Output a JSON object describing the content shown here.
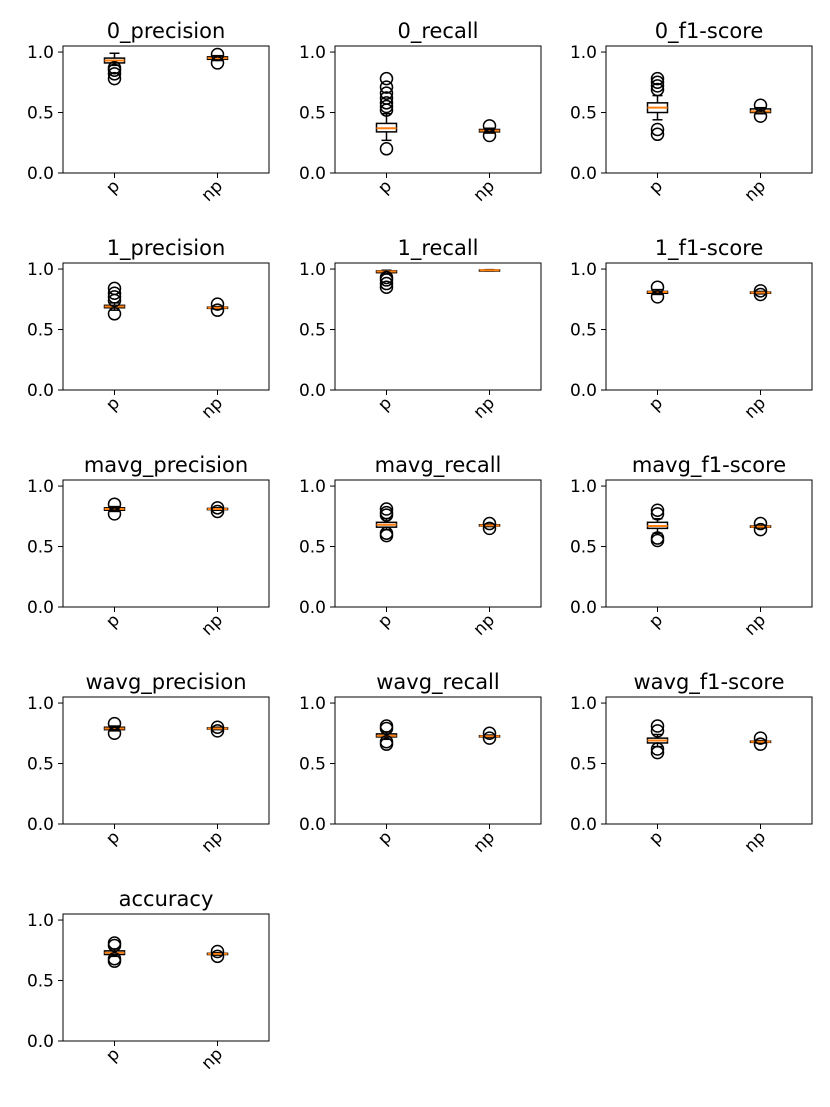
{
  "colors": {
    "median": "#ff7f0e",
    "box": "#000000",
    "flier": "#000000",
    "background": "#ffffff"
  },
  "chart_data": [
    {
      "type": "box",
      "title": "0_precision",
      "categories": [
        "p",
        "np"
      ],
      "yticks": [
        "0.0",
        "0.5",
        "1.0"
      ],
      "ylim": [
        0,
        1.05
      ],
      "boxes": [
        {
          "whislo": 0.89,
          "q1": 0.91,
          "med": 0.93,
          "q3": 0.95,
          "whishi": 0.99,
          "fliers": [
            0.78,
            0.82,
            0.85,
            0.87
          ]
        },
        {
          "whislo": 0.93,
          "q1": 0.94,
          "med": 0.95,
          "q3": 0.96,
          "whishi": 0.97,
          "fliers": [
            0.91,
            0.98
          ]
        }
      ]
    },
    {
      "type": "box",
      "title": "0_recall",
      "categories": [
        "p",
        "np"
      ],
      "yticks": [
        "0.0",
        "0.5",
        "1.0"
      ],
      "ylim": [
        0,
        1.05
      ],
      "boxes": [
        {
          "whislo": 0.27,
          "q1": 0.34,
          "med": 0.37,
          "q3": 0.41,
          "whishi": 0.49,
          "fliers": [
            0.2,
            0.52,
            0.55,
            0.58,
            0.62,
            0.66,
            0.71,
            0.78
          ]
        },
        {
          "whislo": 0.33,
          "q1": 0.34,
          "med": 0.35,
          "q3": 0.36,
          "whishi": 0.37,
          "fliers": [
            0.31,
            0.39
          ]
        }
      ]
    },
    {
      "type": "box",
      "title": "0_f1-score",
      "categories": [
        "p",
        "np"
      ],
      "yticks": [
        "0.0",
        "0.5",
        "1.0"
      ],
      "ylim": [
        0,
        1.05
      ],
      "boxes": [
        {
          "whislo": 0.44,
          "q1": 0.5,
          "med": 0.54,
          "q3": 0.58,
          "whishi": 0.64,
          "fliers": [
            0.32,
            0.36,
            0.69,
            0.72,
            0.75,
            0.78
          ]
        },
        {
          "whislo": 0.49,
          "q1": 0.5,
          "med": 0.51,
          "q3": 0.53,
          "whishi": 0.54,
          "fliers": [
            0.47,
            0.56
          ]
        }
      ]
    },
    {
      "type": "box",
      "title": "1_precision",
      "categories": [
        "p",
        "np"
      ],
      "yticks": [
        "0.0",
        "0.5",
        "1.0"
      ],
      "ylim": [
        0,
        1.05
      ],
      "boxes": [
        {
          "whislo": 0.66,
          "q1": 0.68,
          "med": 0.69,
          "q3": 0.7,
          "whishi": 0.72,
          "fliers": [
            0.63,
            0.74,
            0.77,
            0.8,
            0.84
          ]
        },
        {
          "whislo": 0.67,
          "q1": 0.675,
          "med": 0.68,
          "q3": 0.685,
          "whishi": 0.69,
          "fliers": [
            0.66,
            0.71
          ]
        }
      ]
    },
    {
      "type": "box",
      "title": "1_recall",
      "categories": [
        "p",
        "np"
      ],
      "yticks": [
        "0.0",
        "0.5",
        "1.0"
      ],
      "ylim": [
        0,
        1.05
      ],
      "boxes": [
        {
          "whislo": 0.96,
          "q1": 0.97,
          "med": 0.98,
          "q3": 0.985,
          "whishi": 0.99,
          "fliers": [
            0.85,
            0.88,
            0.91,
            0.93
          ]
        },
        {
          "whislo": 0.985,
          "q1": 0.987,
          "med": 0.99,
          "q3": 0.992,
          "whishi": 0.995,
          "fliers": []
        }
      ]
    },
    {
      "type": "box",
      "title": "1_f1-score",
      "categories": [
        "p",
        "np"
      ],
      "yticks": [
        "0.0",
        "0.5",
        "1.0"
      ],
      "ylim": [
        0,
        1.05
      ],
      "boxes": [
        {
          "whislo": 0.79,
          "q1": 0.8,
          "med": 0.81,
          "q3": 0.815,
          "whishi": 0.83,
          "fliers": [
            0.77,
            0.85
          ]
        },
        {
          "whislo": 0.795,
          "q1": 0.8,
          "med": 0.805,
          "q3": 0.81,
          "whishi": 0.815,
          "fliers": [
            0.79,
            0.82
          ]
        }
      ]
    },
    {
      "type": "box",
      "title": "mavg_precision",
      "categories": [
        "p",
        "np"
      ],
      "yticks": [
        "0.0",
        "0.5",
        "1.0"
      ],
      "ylim": [
        0,
        1.05
      ],
      "boxes": [
        {
          "whislo": 0.79,
          "q1": 0.8,
          "med": 0.81,
          "q3": 0.82,
          "whishi": 0.83,
          "fliers": [
            0.77,
            0.85
          ]
        },
        {
          "whislo": 0.8,
          "q1": 0.805,
          "med": 0.81,
          "q3": 0.815,
          "whishi": 0.82,
          "fliers": [
            0.79,
            0.82
          ]
        }
      ]
    },
    {
      "type": "box",
      "title": "mavg_recall",
      "categories": [
        "p",
        "np"
      ],
      "yticks": [
        "0.0",
        "0.5",
        "1.0"
      ],
      "ylim": [
        0,
        1.05
      ],
      "boxes": [
        {
          "whislo": 0.64,
          "q1": 0.66,
          "med": 0.68,
          "q3": 0.7,
          "whishi": 0.73,
          "fliers": [
            0.59,
            0.61,
            0.76,
            0.78,
            0.81
          ]
        },
        {
          "whislo": 0.665,
          "q1": 0.67,
          "med": 0.675,
          "q3": 0.68,
          "whishi": 0.685,
          "fliers": [
            0.65,
            0.69
          ]
        }
      ]
    },
    {
      "type": "box",
      "title": "mavg_f1-score",
      "categories": [
        "p",
        "np"
      ],
      "yticks": [
        "0.0",
        "0.5",
        "1.0"
      ],
      "ylim": [
        0,
        1.05
      ],
      "boxes": [
        {
          "whislo": 0.61,
          "q1": 0.65,
          "med": 0.67,
          "q3": 0.7,
          "whishi": 0.73,
          "fliers": [
            0.55,
            0.57,
            0.77,
            0.8
          ]
        },
        {
          "whislo": 0.655,
          "q1": 0.66,
          "med": 0.665,
          "q3": 0.67,
          "whishi": 0.675,
          "fliers": [
            0.64,
            0.69
          ]
        }
      ]
    },
    {
      "type": "box",
      "title": "wavg_precision",
      "categories": [
        "p",
        "np"
      ],
      "yticks": [
        "0.0",
        "0.5",
        "1.0"
      ],
      "ylim": [
        0,
        1.05
      ],
      "boxes": [
        {
          "whislo": 0.77,
          "q1": 0.78,
          "med": 0.79,
          "q3": 0.8,
          "whishi": 0.81,
          "fliers": [
            0.75,
            0.83
          ]
        },
        {
          "whislo": 0.78,
          "q1": 0.785,
          "med": 0.79,
          "q3": 0.795,
          "whishi": 0.8,
          "fliers": [
            0.77,
            0.8
          ]
        }
      ]
    },
    {
      "type": "box",
      "title": "wavg_recall",
      "categories": [
        "p",
        "np"
      ],
      "yticks": [
        "0.0",
        "0.5",
        "1.0"
      ],
      "ylim": [
        0,
        1.05
      ],
      "boxes": [
        {
          "whislo": 0.7,
          "q1": 0.72,
          "med": 0.73,
          "q3": 0.745,
          "whishi": 0.76,
          "fliers": [
            0.66,
            0.68,
            0.79,
            0.81
          ]
        },
        {
          "whislo": 0.715,
          "q1": 0.72,
          "med": 0.725,
          "q3": 0.73,
          "whishi": 0.735,
          "fliers": [
            0.71,
            0.75
          ]
        }
      ]
    },
    {
      "type": "box",
      "title": "wavg_f1-score",
      "categories": [
        "p",
        "np"
      ],
      "yticks": [
        "0.0",
        "0.5",
        "1.0"
      ],
      "ylim": [
        0,
        1.05
      ],
      "boxes": [
        {
          "whislo": 0.64,
          "q1": 0.67,
          "med": 0.69,
          "q3": 0.71,
          "whishi": 0.74,
          "fliers": [
            0.59,
            0.62,
            0.77,
            0.81
          ]
        },
        {
          "whislo": 0.67,
          "q1": 0.675,
          "med": 0.68,
          "q3": 0.685,
          "whishi": 0.69,
          "fliers": [
            0.66,
            0.71
          ]
        }
      ]
    },
    {
      "type": "box",
      "title": "accuracy",
      "categories": [
        "p",
        "np"
      ],
      "yticks": [
        "0.0",
        "0.5",
        "1.0"
      ],
      "ylim": [
        0,
        1.05
      ],
      "boxes": [
        {
          "whislo": 0.7,
          "q1": 0.715,
          "med": 0.73,
          "q3": 0.745,
          "whishi": 0.76,
          "fliers": [
            0.66,
            0.68,
            0.79,
            0.81
          ]
        },
        {
          "whislo": 0.71,
          "q1": 0.715,
          "med": 0.72,
          "q3": 0.725,
          "whishi": 0.73,
          "fliers": [
            0.7,
            0.74
          ]
        }
      ]
    }
  ]
}
